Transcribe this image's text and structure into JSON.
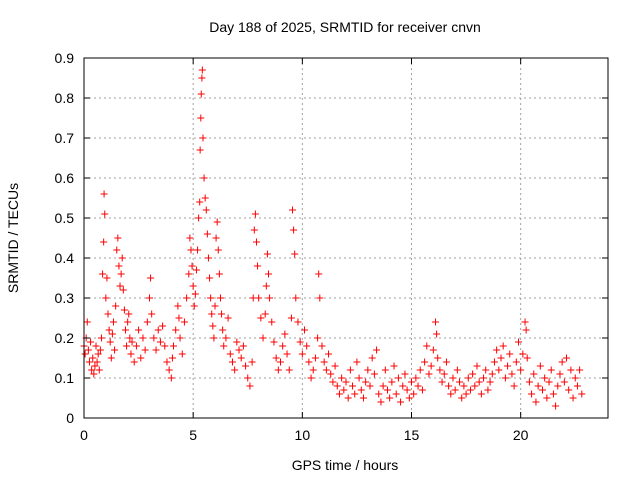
{
  "chart_data": {
    "type": "scatter",
    "title": "Day 188 of 2025, SRMTID for receiver cnvn",
    "xlabel": "GPS time / hours",
    "ylabel": "SRMTID / TECUs",
    "xlim": [
      0,
      24
    ],
    "ylim": [
      0,
      0.9
    ],
    "xticks": [
      0,
      5,
      10,
      15,
      20
    ],
    "yticks": [
      0,
      0.1,
      0.2,
      0.3,
      0.4,
      0.5,
      0.6,
      0.7,
      0.8,
      0.9
    ],
    "xtick_labels": [
      "0",
      "5",
      "10",
      "15",
      "20"
    ],
    "ytick_labels": [
      "0",
      "0.1",
      "0.2",
      "0.3",
      "0.4",
      "0.5",
      "0.6",
      "0.7",
      "0.8",
      "0.9"
    ],
    "grid": true,
    "marker": "+",
    "color": "#ff0000",
    "series": [
      {
        "name": "SRMTID",
        "points": [
          [
            0.0,
            0.18
          ],
          [
            0.05,
            0.16
          ],
          [
            0.1,
            0.2
          ],
          [
            0.15,
            0.24
          ],
          [
            0.2,
            0.17
          ],
          [
            0.25,
            0.14
          ],
          [
            0.3,
            0.19
          ],
          [
            0.35,
            0.12
          ],
          [
            0.4,
            0.15
          ],
          [
            0.45,
            0.11
          ],
          [
            0.5,
            0.13
          ],
          [
            0.55,
            0.18
          ],
          [
            0.6,
            0.14
          ],
          [
            0.65,
            0.16
          ],
          [
            0.7,
            0.12
          ],
          [
            0.75,
            0.17
          ],
          [
            0.8,
            0.2
          ],
          [
            0.85,
            0.36
          ],
          [
            0.9,
            0.44
          ],
          [
            0.92,
            0.56
          ],
          [
            0.95,
            0.51
          ],
          [
            1.0,
            0.3
          ],
          [
            1.05,
            0.35
          ],
          [
            1.1,
            0.26
          ],
          [
            1.15,
            0.22
          ],
          [
            1.2,
            0.19
          ],
          [
            1.25,
            0.15
          ],
          [
            1.3,
            0.21
          ],
          [
            1.35,
            0.24
          ],
          [
            1.4,
            0.17
          ],
          [
            1.45,
            0.28
          ],
          [
            1.5,
            0.42
          ],
          [
            1.55,
            0.45
          ],
          [
            1.6,
            0.38
          ],
          [
            1.65,
            0.33
          ],
          [
            1.7,
            0.36
          ],
          [
            1.75,
            0.4
          ],
          [
            1.8,
            0.32
          ],
          [
            1.85,
            0.27
          ],
          [
            1.9,
            0.22
          ],
          [
            1.95,
            0.18
          ],
          [
            2.0,
            0.24
          ],
          [
            2.05,
            0.26
          ],
          [
            2.1,
            0.2
          ],
          [
            2.15,
            0.16
          ],
          [
            2.2,
            0.19
          ],
          [
            2.3,
            0.14
          ],
          [
            2.4,
            0.18
          ],
          [
            2.5,
            0.22
          ],
          [
            2.6,
            0.15
          ],
          [
            2.7,
            0.2
          ],
          [
            2.8,
            0.17
          ],
          [
            2.9,
            0.24
          ],
          [
            3.0,
            0.3
          ],
          [
            3.05,
            0.35
          ],
          [
            3.1,
            0.26
          ],
          [
            3.2,
            0.2
          ],
          [
            3.3,
            0.17
          ],
          [
            3.4,
            0.22
          ],
          [
            3.5,
            0.19
          ],
          [
            3.6,
            0.23
          ],
          [
            3.7,
            0.18
          ],
          [
            3.8,
            0.14
          ],
          [
            3.9,
            0.12
          ],
          [
            4.0,
            0.1
          ],
          [
            4.05,
            0.15
          ],
          [
            4.1,
            0.18
          ],
          [
            4.2,
            0.22
          ],
          [
            4.3,
            0.28
          ],
          [
            4.35,
            0.25
          ],
          [
            4.4,
            0.2
          ],
          [
            4.5,
            0.16
          ],
          [
            4.6,
            0.24
          ],
          [
            4.7,
            0.3
          ],
          [
            4.8,
            0.36
          ],
          [
            4.85,
            0.45
          ],
          [
            4.9,
            0.42
          ],
          [
            4.95,
            0.38
          ],
          [
            5.0,
            0.33
          ],
          [
            5.05,
            0.28
          ],
          [
            5.1,
            0.31
          ],
          [
            5.15,
            0.37
          ],
          [
            5.2,
            0.42
          ],
          [
            5.25,
            0.5
          ],
          [
            5.3,
            0.54
          ],
          [
            5.32,
            0.67
          ],
          [
            5.35,
            0.75
          ],
          [
            5.37,
            0.81
          ],
          [
            5.4,
            0.85
          ],
          [
            5.42,
            0.87
          ],
          [
            5.45,
            0.7
          ],
          [
            5.5,
            0.6
          ],
          [
            5.55,
            0.55
          ],
          [
            5.6,
            0.52
          ],
          [
            5.65,
            0.46
          ],
          [
            5.7,
            0.4
          ],
          [
            5.75,
            0.35
          ],
          [
            5.8,
            0.3
          ],
          [
            5.85,
            0.26
          ],
          [
            5.9,
            0.23
          ],
          [
            5.95,
            0.2
          ],
          [
            6.0,
            0.28
          ],
          [
            6.05,
            0.45
          ],
          [
            6.1,
            0.49
          ],
          [
            6.15,
            0.42
          ],
          [
            6.2,
            0.36
          ],
          [
            6.25,
            0.3
          ],
          [
            6.3,
            0.26
          ],
          [
            6.35,
            0.22
          ],
          [
            6.4,
            0.18
          ],
          [
            6.5,
            0.2
          ],
          [
            6.6,
            0.25
          ],
          [
            6.7,
            0.16
          ],
          [
            6.8,
            0.14
          ],
          [
            6.9,
            0.12
          ],
          [
            7.0,
            0.19
          ],
          [
            7.1,
            0.17
          ],
          [
            7.2,
            0.15
          ],
          [
            7.3,
            0.18
          ],
          [
            7.4,
            0.13
          ],
          [
            7.5,
            0.1
          ],
          [
            7.6,
            0.08
          ],
          [
            7.7,
            0.14
          ],
          [
            7.75,
            0.3
          ],
          [
            7.8,
            0.47
          ],
          [
            7.85,
            0.51
          ],
          [
            7.9,
            0.44
          ],
          [
            7.95,
            0.38
          ],
          [
            8.0,
            0.3
          ],
          [
            8.1,
            0.25
          ],
          [
            8.2,
            0.2
          ],
          [
            8.3,
            0.26
          ],
          [
            8.35,
            0.33
          ],
          [
            8.4,
            0.41
          ],
          [
            8.45,
            0.36
          ],
          [
            8.5,
            0.3
          ],
          [
            8.6,
            0.24
          ],
          [
            8.7,
            0.19
          ],
          [
            8.8,
            0.15
          ],
          [
            8.9,
            0.12
          ],
          [
            9.0,
            0.14
          ],
          [
            9.1,
            0.18
          ],
          [
            9.2,
            0.21
          ],
          [
            9.3,
            0.16
          ],
          [
            9.4,
            0.12
          ],
          [
            9.5,
            0.25
          ],
          [
            9.55,
            0.52
          ],
          [
            9.6,
            0.47
          ],
          [
            9.65,
            0.41
          ],
          [
            9.7,
            0.3
          ],
          [
            9.8,
            0.24
          ],
          [
            9.9,
            0.19
          ],
          [
            10.0,
            0.16
          ],
          [
            10.1,
            0.22
          ],
          [
            10.2,
            0.18
          ],
          [
            10.3,
            0.14
          ],
          [
            10.4,
            0.1
          ],
          [
            10.5,
            0.12
          ],
          [
            10.6,
            0.15
          ],
          [
            10.7,
            0.2
          ],
          [
            10.75,
            0.36
          ],
          [
            10.8,
            0.3
          ],
          [
            10.9,
            0.18
          ],
          [
            11.0,
            0.14
          ],
          [
            11.1,
            0.12
          ],
          [
            11.2,
            0.16
          ],
          [
            11.3,
            0.11
          ],
          [
            11.4,
            0.09
          ],
          [
            11.5,
            0.13
          ],
          [
            11.6,
            0.08
          ],
          [
            11.7,
            0.06
          ],
          [
            11.8,
            0.1
          ],
          [
            11.9,
            0.07
          ],
          [
            12.0,
            0.09
          ],
          [
            12.1,
            0.05
          ],
          [
            12.2,
            0.12
          ],
          [
            12.3,
            0.08
          ],
          [
            12.4,
            0.06
          ],
          [
            12.5,
            0.14
          ],
          [
            12.6,
            0.1
          ],
          [
            12.7,
            0.07
          ],
          [
            12.8,
            0.05
          ],
          [
            12.9,
            0.09
          ],
          [
            13.0,
            0.12
          ],
          [
            13.1,
            0.08
          ],
          [
            13.2,
            0.15
          ],
          [
            13.3,
            0.11
          ],
          [
            13.4,
            0.17
          ],
          [
            13.5,
            0.06
          ],
          [
            13.6,
            0.04
          ],
          [
            13.7,
            0.08
          ],
          [
            13.8,
            0.12
          ],
          [
            13.9,
            0.07
          ],
          [
            14.0,
            0.05
          ],
          [
            14.1,
            0.09
          ],
          [
            14.2,
            0.13
          ],
          [
            14.3,
            0.06
          ],
          [
            14.4,
            0.1
          ],
          [
            14.5,
            0.04
          ],
          [
            14.6,
            0.08
          ],
          [
            14.7,
            0.11
          ],
          [
            14.8,
            0.07
          ],
          [
            14.9,
            0.05
          ],
          [
            15.0,
            0.09
          ],
          [
            15.1,
            0.06
          ],
          [
            15.2,
            0.1
          ],
          [
            15.3,
            0.08
          ],
          [
            15.4,
            0.12
          ],
          [
            15.5,
            0.07
          ],
          [
            15.6,
            0.14
          ],
          [
            15.7,
            0.18
          ],
          [
            15.8,
            0.11
          ],
          [
            15.9,
            0.13
          ],
          [
            16.0,
            0.17
          ],
          [
            16.1,
            0.24
          ],
          [
            16.15,
            0.21
          ],
          [
            16.2,
            0.15
          ],
          [
            16.3,
            0.12
          ],
          [
            16.4,
            0.09
          ],
          [
            16.5,
            0.11
          ],
          [
            16.6,
            0.14
          ],
          [
            16.7,
            0.08
          ],
          [
            16.8,
            0.06
          ],
          [
            16.9,
            0.1
          ],
          [
            17.0,
            0.07
          ],
          [
            17.1,
            0.12
          ],
          [
            17.2,
            0.09
          ],
          [
            17.3,
            0.05
          ],
          [
            17.4,
            0.08
          ],
          [
            17.5,
            0.06
          ],
          [
            17.6,
            0.1
          ],
          [
            17.7,
            0.07
          ],
          [
            17.8,
            0.11
          ],
          [
            17.9,
            0.08
          ],
          [
            18.0,
            0.13
          ],
          [
            18.1,
            0.09
          ],
          [
            18.2,
            0.06
          ],
          [
            18.3,
            0.1
          ],
          [
            18.4,
            0.12
          ],
          [
            18.5,
            0.07
          ],
          [
            18.6,
            0.09
          ],
          [
            18.7,
            0.11
          ],
          [
            18.8,
            0.14
          ],
          [
            18.9,
            0.17
          ],
          [
            19.0,
            0.12
          ],
          [
            19.1,
            0.15
          ],
          [
            19.2,
            0.18
          ],
          [
            19.3,
            0.1
          ],
          [
            19.4,
            0.13
          ],
          [
            19.5,
            0.16
          ],
          [
            19.6,
            0.11
          ],
          [
            19.7,
            0.08
          ],
          [
            19.8,
            0.14
          ],
          [
            19.9,
            0.19
          ],
          [
            20.0,
            0.12
          ],
          [
            20.1,
            0.16
          ],
          [
            20.2,
            0.24
          ],
          [
            20.25,
            0.22
          ],
          [
            20.3,
            0.15
          ],
          [
            20.4,
            0.09
          ],
          [
            20.5,
            0.06
          ],
          [
            20.6,
            0.11
          ],
          [
            20.7,
            0.04
          ],
          [
            20.8,
            0.08
          ],
          [
            20.9,
            0.13
          ],
          [
            21.0,
            0.07
          ],
          [
            21.1,
            0.1
          ],
          [
            21.2,
            0.05
          ],
          [
            21.3,
            0.09
          ],
          [
            21.4,
            0.12
          ],
          [
            21.5,
            0.06
          ],
          [
            21.6,
            0.03
          ],
          [
            21.7,
            0.08
          ],
          [
            21.8,
            0.11
          ],
          [
            21.9,
            0.14
          ],
          [
            22.0,
            0.09
          ],
          [
            22.1,
            0.15
          ],
          [
            22.2,
            0.07
          ],
          [
            22.3,
            0.12
          ],
          [
            22.4,
            0.05
          ],
          [
            22.5,
            0.1
          ],
          [
            22.6,
            0.08
          ],
          [
            22.7,
            0.12
          ],
          [
            22.8,
            0.06
          ]
        ]
      }
    ]
  }
}
